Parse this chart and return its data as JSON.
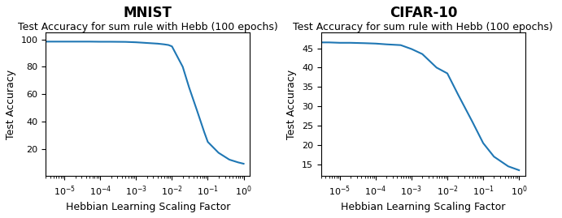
{
  "mnist_title": "MNIST",
  "mnist_subtitle": "Test Accuracy for sum rule with Hebb (100 epochs)",
  "cifar_title": "CIFAR-10",
  "cifar_subtitle": "Test Accuracy for sum rule with Hebb (100 epochs)",
  "xlabel": "Hebbian Learning Scaling Factor",
  "ylabel": "Test Accuracy",
  "line_color": "#1f77b4",
  "mnist_x": [
    3e-06,
    5e-06,
    1e-05,
    2e-05,
    5e-05,
    0.0001,
    0.0002,
    0.0005,
    0.001,
    0.002,
    0.004,
    0.006,
    0.008,
    0.01,
    0.02,
    0.03,
    0.05,
    0.08,
    0.1,
    0.2,
    0.4,
    0.7,
    1.0
  ],
  "mnist_y": [
    98.5,
    98.5,
    98.5,
    98.5,
    98.5,
    98.4,
    98.4,
    98.3,
    98.0,
    97.5,
    97.0,
    96.5,
    96.0,
    95.0,
    80.0,
    65.0,
    48.0,
    32.0,
    25.0,
    17.0,
    12.0,
    10.0,
    9.0
  ],
  "cifar_x": [
    3e-06,
    5e-06,
    1e-05,
    2e-05,
    5e-05,
    0.0001,
    0.0002,
    0.0005,
    0.001,
    0.002,
    0.005,
    0.01,
    0.02,
    0.05,
    0.1,
    0.2,
    0.5,
    1.0
  ],
  "cifar_y": [
    46.5,
    46.5,
    46.4,
    46.4,
    46.3,
    46.2,
    46.0,
    45.8,
    44.8,
    43.5,
    40.0,
    38.5,
    33.0,
    26.0,
    20.5,
    17.0,
    14.5,
    13.5
  ],
  "mnist_ylim": [
    0,
    105
  ],
  "mnist_yticks": [
    20,
    40,
    60,
    80,
    100
  ],
  "cifar_ylim": [
    12,
    49
  ],
  "cifar_yticks": [
    15,
    20,
    25,
    30,
    35,
    40,
    45
  ],
  "xlim_mnist": [
    3e-06,
    1.5
  ],
  "xlim_cifar": [
    3e-06,
    1.5
  ],
  "title_fontsize": 12,
  "subtitle_fontsize": 9
}
